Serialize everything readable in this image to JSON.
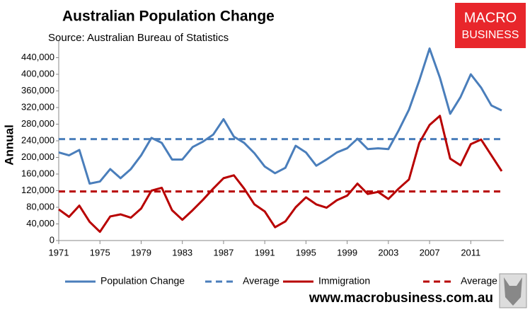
{
  "chart_data": {
    "type": "line",
    "title": "Australian Population Change",
    "subtitle": "Source: Australian Bureau of Statistics",
    "y_label": "Annual",
    "logo": [
      "MACRO",
      "BUSINESS"
    ],
    "website": "www.macrobusiness.com.au",
    "x": [
      1971,
      1972,
      1973,
      1974,
      1975,
      1976,
      1977,
      1978,
      1979,
      1980,
      1981,
      1982,
      1983,
      1984,
      1985,
      1986,
      1987,
      1988,
      1989,
      1990,
      1991,
      1992,
      1993,
      1994,
      1995,
      1996,
      1997,
      1998,
      1999,
      2000,
      2001,
      2002,
      2003,
      2004,
      2005,
      2006,
      2007,
      2008,
      2009,
      2010,
      2011,
      2012,
      2013,
      2014
    ],
    "xlim": [
      1971,
      2014
    ],
    "xticks": [
      1971,
      1975,
      1979,
      1983,
      1987,
      1991,
      1995,
      1999,
      2003,
      2007,
      2011
    ],
    "ylim": [
      0,
      480000
    ],
    "yticks": [
      0,
      {
        "value": 40000,
        "label": "40,000"
      },
      {
        "value": 80000,
        "label": "80,000"
      },
      {
        "value": 120000,
        "label": "120,000"
      },
      {
        "value": 160000,
        "label": "160,000"
      },
      {
        "value": 200000,
        "label": "200,000"
      },
      {
        "value": 240000,
        "label": "240,000"
      },
      {
        "value": 280000,
        "label": "280,000"
      },
      {
        "value": 320000,
        "label": "320,000"
      },
      {
        "value": 360000,
        "label": "360,000"
      },
      {
        "value": 400000,
        "label": "400,000"
      },
      {
        "value": 440000,
        "label": "440,000"
      }
    ],
    "grid": false,
    "series": [
      {
        "name": "Population Change",
        "color": "#4a7ebb",
        "values": [
          212000,
          205000,
          218000,
          137000,
          142000,
          172000,
          150000,
          172000,
          205000,
          247000,
          235000,
          195000,
          195000,
          225000,
          238000,
          255000,
          292000,
          250000,
          235000,
          210000,
          178000,
          162000,
          175000,
          228000,
          212000,
          180000,
          195000,
          212000,
          222000,
          245000,
          220000,
          222000,
          220000,
          265000,
          315000,
          385000,
          462000,
          392000,
          305000,
          345000,
          400000,
          368000,
          325000,
          313000
        ],
        "average": {
          "name": "Average",
          "value": 244000
        }
      },
      {
        "name": "Immigration",
        "color": "#b80000",
        "values": [
          75000,
          57000,
          84000,
          45000,
          21000,
          58000,
          63000,
          55000,
          77000,
          120000,
          127000,
          73000,
          50000,
          73000,
          98000,
          125000,
          150000,
          157000,
          125000,
          87000,
          70000,
          32000,
          46000,
          80000,
          104000,
          87000,
          79000,
          97000,
          108000,
          137000,
          112000,
          117000,
          100000,
          125000,
          147000,
          235000,
          278000,
          300000,
          197000,
          181000,
          232000,
          243000,
          205000,
          167000
        ],
        "average": {
          "name": "Average",
          "value": 118000
        }
      }
    ]
  }
}
